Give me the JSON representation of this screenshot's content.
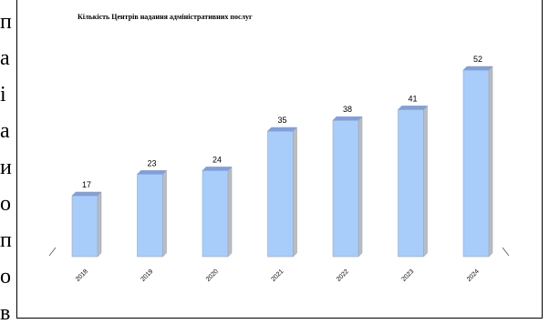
{
  "side_text": {
    "letters": [
      "п",
      "а",
      "і",
      "а",
      "и",
      "о",
      "п",
      "о",
      "в"
    ]
  },
  "chart_data": {
    "type": "bar",
    "title": "Кількість Центрів надання адміністративних послуг",
    "xlabel": "",
    "ylabel": "",
    "categories": [
      "2018",
      "2019",
      "2020",
      "2021",
      "2022",
      "2023",
      "2024"
    ],
    "values": [
      17,
      23,
      24,
      35,
      38,
      41,
      52
    ],
    "ylim": [
      0,
      55
    ],
    "grid": false,
    "legend": "none",
    "colors": {
      "bar_front": "#a9cdfb",
      "bar_top": "#7f9fdf",
      "bar_side": "#bcbcbc",
      "bar_outline": "#8aa0c0"
    }
  }
}
